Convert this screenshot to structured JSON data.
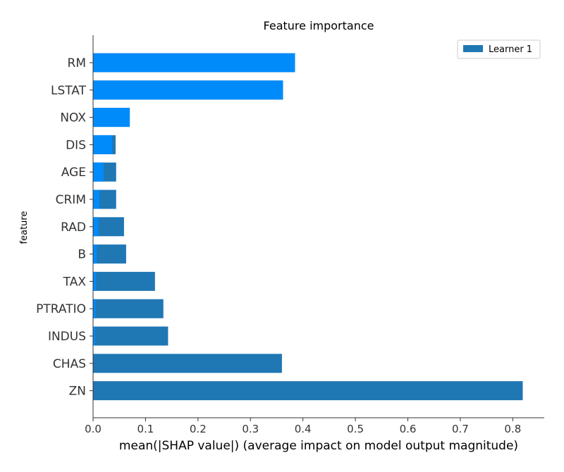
{
  "chart_data": {
    "type": "bar",
    "orientation": "horizontal",
    "title": "Feature importance",
    "xlabel": "mean(|SHAP value|) (average impact on model output magnitude)",
    "ylabel": "feature",
    "xlim": [
      0,
      0.86
    ],
    "x_ticks": [
      "0.0",
      "0.1",
      "0.2",
      "0.3",
      "0.4",
      "0.5",
      "0.6",
      "0.7",
      "0.8"
    ],
    "grid": false,
    "legend": {
      "placement": "top-right",
      "entries": [
        "Learner 1"
      ]
    },
    "categories": [
      "RM",
      "LSTAT",
      "NOX",
      "DIS",
      "AGE",
      "CRIM",
      "RAD",
      "B",
      "TAX",
      "PTRATIO",
      "INDUS",
      "CHAS",
      "ZN"
    ],
    "series": [
      {
        "name": "Learner 1",
        "color": "#1f77b4",
        "values": [
          0.385,
          0.362,
          0.07,
          0.043,
          0.044,
          0.044,
          0.059,
          0.063,
          0.118,
          0.134,
          0.143,
          0.36,
          0.819
        ]
      },
      {
        "color": "#008bfb",
        "values": [
          0.385,
          0.362,
          0.07,
          0.036,
          0.02,
          0.012,
          0.01,
          0.007,
          0.006,
          0.005,
          0.004,
          0.0,
          0.0
        ]
      }
    ]
  }
}
